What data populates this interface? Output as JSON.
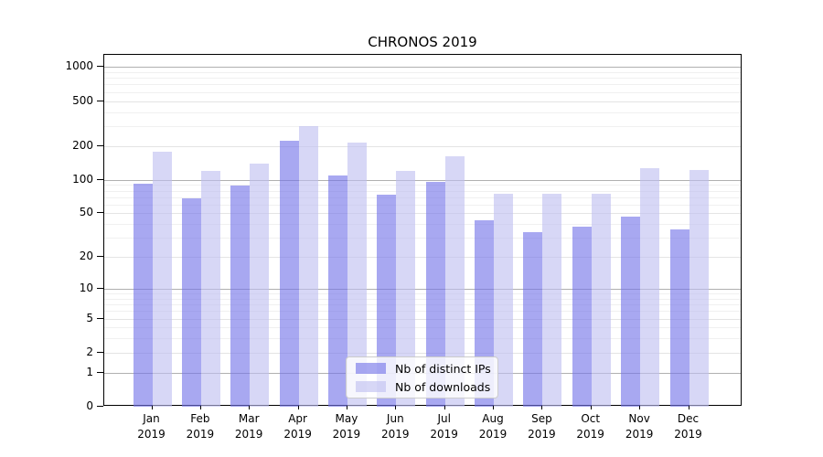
{
  "chart_data": {
    "type": "bar",
    "title": "CHRONOS 2019",
    "categories": [
      "Jan",
      "Feb",
      "Mar",
      "Apr",
      "May",
      "Jun",
      "Jul",
      "Aug",
      "Sep",
      "Oct",
      "Nov",
      "Dec"
    ],
    "xlabel_year": "2019",
    "series": [
      {
        "name": "Nb of distinct IPs",
        "color": "#7272e8",
        "opacity": 0.62,
        "values": [
          92,
          68,
          89,
          222,
          110,
          74,
          96,
          43,
          34,
          38,
          47,
          36
        ]
      },
      {
        "name": "Nb of downloads",
        "color": "#bebef0",
        "opacity": 0.62,
        "values": [
          177,
          120,
          139,
          299,
          213,
          119,
          163,
          75,
          75,
          75,
          127,
          122
        ]
      }
    ],
    "xlabel": "",
    "ylabel": "",
    "yaxis": {
      "scale": "log1p",
      "ticks": [
        1000,
        500,
        200,
        100,
        50,
        20,
        10,
        5,
        2,
        1,
        0
      ],
      "decade_ticks": [
        1000,
        100,
        10,
        1
      ],
      "minor_ticks": [
        900,
        800,
        700,
        600,
        400,
        300,
        90,
        80,
        70,
        60,
        40,
        30,
        9,
        8,
        7,
        6,
        4,
        3
      ],
      "ylim": [
        0,
        1280
      ]
    },
    "grid": true,
    "legend": {
      "position": "lower center",
      "entries": [
        "Nb of distinct IPs",
        "Nb of downloads"
      ]
    }
  },
  "colors": {
    "decade_gridline": "#b0b0b0",
    "submajor_gridline": "#e4e4e4",
    "minor_gridline": "#f0f0f0",
    "axis": "#000000",
    "legend_border": "#cccccc"
  }
}
